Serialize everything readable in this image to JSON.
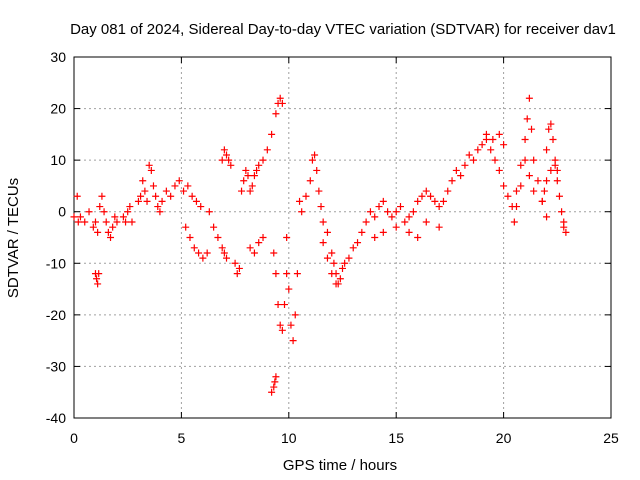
{
  "chart_data": {
    "type": "scatter",
    "title": "Day 081 of 2024, Sidereal Day-to-day VTEC variation (SDTVAR) for receiver dav1",
    "xlabel": "GPS time / hours",
    "ylabel": "SDTVAR / TECUs",
    "xlim": [
      0,
      25
    ],
    "ylim": [
      -40,
      30
    ],
    "xticks": [
      0,
      5,
      10,
      15,
      20,
      25
    ],
    "yticks": [
      -40,
      -30,
      -20,
      -10,
      0,
      10,
      20,
      30
    ],
    "grid": true,
    "marker": "+",
    "color": "#ff0000",
    "series": [
      {
        "name": "dav1",
        "points": [
          [
            0.0,
            -1
          ],
          [
            0.2,
            -2
          ],
          [
            0.3,
            -1
          ],
          [
            0.15,
            3
          ],
          [
            0.5,
            -2
          ],
          [
            0.7,
            0
          ],
          [
            0.9,
            -3
          ],
          [
            1.0,
            -2
          ],
          [
            1.1,
            -4
          ],
          [
            1.2,
            1
          ],
          [
            1.3,
            3
          ],
          [
            1.4,
            0
          ],
          [
            1.5,
            -2
          ],
          [
            1.6,
            -4
          ],
          [
            1.7,
            -5
          ],
          [
            1.8,
            -3
          ],
          [
            1.9,
            -1
          ],
          [
            2.0,
            -2
          ],
          [
            1.0,
            -12
          ],
          [
            1.05,
            -13
          ],
          [
            1.1,
            -14
          ],
          [
            1.15,
            -12
          ],
          [
            2.3,
            -1
          ],
          [
            2.4,
            -2
          ],
          [
            2.5,
            0
          ],
          [
            2.6,
            1
          ],
          [
            2.7,
            -2
          ],
          [
            3.0,
            2
          ],
          [
            3.1,
            3
          ],
          [
            3.2,
            6
          ],
          [
            3.3,
            4
          ],
          [
            3.4,
            2
          ],
          [
            3.5,
            9
          ],
          [
            3.6,
            8
          ],
          [
            3.7,
            5
          ],
          [
            3.8,
            3
          ],
          [
            3.9,
            1
          ],
          [
            4.0,
            0
          ],
          [
            4.1,
            2
          ],
          [
            4.3,
            4
          ],
          [
            4.5,
            3
          ],
          [
            4.7,
            5
          ],
          [
            4.9,
            6
          ],
          [
            5.1,
            4
          ],
          [
            5.3,
            5
          ],
          [
            5.5,
            3
          ],
          [
            5.7,
            2
          ],
          [
            5.9,
            1
          ],
          [
            5.2,
            -3
          ],
          [
            5.4,
            -5
          ],
          [
            5.6,
            -7
          ],
          [
            5.8,
            -8
          ],
          [
            6.0,
            -9
          ],
          [
            6.2,
            -8
          ],
          [
            6.3,
            0
          ],
          [
            6.5,
            -3
          ],
          [
            6.7,
            -5
          ],
          [
            6.9,
            -7
          ],
          [
            7.0,
            -8
          ],
          [
            7.1,
            -9
          ],
          [
            6.9,
            10
          ],
          [
            7.0,
            12
          ],
          [
            7.1,
            11
          ],
          [
            7.2,
            10
          ],
          [
            7.3,
            9
          ],
          [
            7.5,
            -10
          ],
          [
            7.6,
            -12
          ],
          [
            7.7,
            -11
          ],
          [
            7.8,
            4
          ],
          [
            7.9,
            6
          ],
          [
            8.0,
            8
          ],
          [
            8.1,
            7
          ],
          [
            8.2,
            4
          ],
          [
            8.3,
            5
          ],
          [
            8.4,
            7
          ],
          [
            8.5,
            8
          ],
          [
            8.6,
            9
          ],
          [
            8.8,
            10
          ],
          [
            9.0,
            12
          ],
          [
            9.2,
            15
          ],
          [
            9.4,
            19
          ],
          [
            9.5,
            21
          ],
          [
            9.6,
            22
          ],
          [
            9.7,
            21
          ],
          [
            8.2,
            -7
          ],
          [
            8.4,
            -8
          ],
          [
            8.6,
            -6
          ],
          [
            8.8,
            -5
          ],
          [
            9.3,
            -8
          ],
          [
            9.4,
            -12
          ],
          [
            9.5,
            -18
          ],
          [
            9.6,
            -22
          ],
          [
            9.7,
            -23
          ],
          [
            9.8,
            -18
          ],
          [
            9.9,
            -12
          ],
          [
            9.2,
            -35
          ],
          [
            9.3,
            -34
          ],
          [
            9.35,
            -33
          ],
          [
            9.4,
            -32
          ],
          [
            9.9,
            -5
          ],
          [
            10.0,
            -15
          ],
          [
            10.1,
            -22
          ],
          [
            10.2,
            -25
          ],
          [
            10.3,
            -20
          ],
          [
            10.4,
            -12
          ],
          [
            10.5,
            2
          ],
          [
            10.6,
            0
          ],
          [
            10.8,
            3
          ],
          [
            11.0,
            6
          ],
          [
            11.1,
            10
          ],
          [
            11.2,
            11
          ],
          [
            11.3,
            8
          ],
          [
            11.4,
            4
          ],
          [
            11.5,
            1
          ],
          [
            11.6,
            -2
          ],
          [
            11.8,
            -4
          ],
          [
            12.0,
            -8
          ],
          [
            12.1,
            -10
          ],
          [
            12.2,
            -12
          ],
          [
            12.3,
            -14
          ],
          [
            12.4,
            -13
          ],
          [
            12.5,
            -11
          ],
          [
            12.6,
            -10
          ],
          [
            12.8,
            -9
          ],
          [
            13.0,
            -7
          ],
          [
            13.2,
            -6
          ],
          [
            13.4,
            -4
          ],
          [
            13.6,
            -2
          ],
          [
            11.6,
            -6
          ],
          [
            11.8,
            -9
          ],
          [
            12.0,
            -12
          ],
          [
            12.2,
            -14
          ],
          [
            13.8,
            0
          ],
          [
            14.0,
            -1
          ],
          [
            14.2,
            1
          ],
          [
            14.4,
            2
          ],
          [
            14.6,
            0
          ],
          [
            14.8,
            -1
          ],
          [
            15.0,
            0
          ],
          [
            15.2,
            1
          ],
          [
            15.4,
            -2
          ],
          [
            15.6,
            -1
          ],
          [
            15.8,
            0
          ],
          [
            16.0,
            2
          ],
          [
            16.2,
            3
          ],
          [
            16.4,
            4
          ],
          [
            16.6,
            3
          ],
          [
            16.8,
            2
          ],
          [
            17.0,
            1
          ],
          [
            17.2,
            2
          ],
          [
            17.4,
            4
          ],
          [
            17.6,
            6
          ],
          [
            17.8,
            8
          ],
          [
            18.0,
            7
          ],
          [
            18.2,
            9
          ],
          [
            18.4,
            11
          ],
          [
            18.6,
            10
          ],
          [
            18.8,
            12
          ],
          [
            19.0,
            13
          ],
          [
            19.2,
            14
          ],
          [
            19.4,
            12
          ],
          [
            19.6,
            10
          ],
          [
            19.8,
            8
          ],
          [
            20.0,
            5
          ],
          [
            20.2,
            3
          ],
          [
            20.4,
            1
          ],
          [
            20.6,
            4
          ],
          [
            20.8,
            9
          ],
          [
            21.0,
            14
          ],
          [
            21.1,
            18
          ],
          [
            21.2,
            22
          ],
          [
            21.3,
            16
          ],
          [
            21.4,
            10
          ],
          [
            21.6,
            6
          ],
          [
            21.8,
            2
          ],
          [
            22.0,
            -1
          ],
          [
            14.0,
            -5
          ],
          [
            14.4,
            -4
          ],
          [
            15.0,
            -3
          ],
          [
            15.6,
            -4
          ],
          [
            16.0,
            -5
          ],
          [
            16.4,
            -2
          ],
          [
            17.0,
            -3
          ],
          [
            19.2,
            15
          ],
          [
            19.5,
            14
          ],
          [
            19.8,
            15
          ],
          [
            20.0,
            13
          ],
          [
            22.0,
            12
          ],
          [
            22.1,
            16
          ],
          [
            22.2,
            17
          ],
          [
            22.3,
            14
          ],
          [
            22.4,
            10
          ],
          [
            22.5,
            6
          ],
          [
            22.6,
            3
          ],
          [
            22.7,
            0
          ],
          [
            22.8,
            -2
          ],
          [
            22.9,
            -4
          ],
          [
            22.8,
            -3
          ],
          [
            21.8,
            2
          ],
          [
            21.9,
            4
          ],
          [
            22.0,
            6
          ],
          [
            22.2,
            8
          ],
          [
            22.4,
            9
          ],
          [
            22.5,
            8
          ],
          [
            20.5,
            -2
          ],
          [
            20.6,
            1
          ],
          [
            20.8,
            5
          ],
          [
            21.0,
            10
          ],
          [
            21.2,
            7
          ],
          [
            21.4,
            4
          ]
        ]
      }
    ]
  }
}
